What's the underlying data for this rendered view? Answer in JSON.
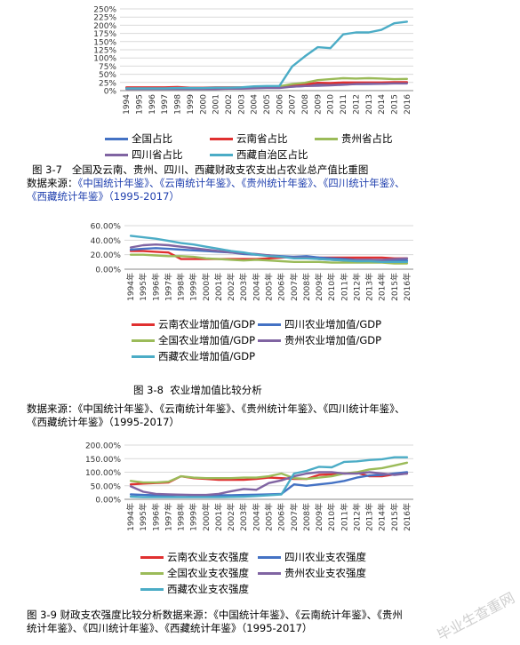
{
  "chart_data": [
    {
      "type": "line",
      "x": [
        "1994",
        "1995",
        "1996",
        "1997",
        "1998",
        "1999",
        "2000",
        "2001",
        "2002",
        "2003",
        "2004",
        "2005",
        "2006",
        "2007",
        "2008",
        "2009",
        "2010",
        "2011",
        "2012",
        "2013",
        "2014",
        "2015",
        "2016"
      ],
      "ylim": [
        0,
        250
      ],
      "yticks": [
        "0%",
        "25%",
        "50%",
        "75%",
        "100%",
        "125%",
        "150%",
        "175%",
        "200%",
        "225%",
        "250%"
      ],
      "grid": true,
      "legend_position": "bottom",
      "series": [
        {
          "name": "全国占比",
          "color": "#4472c4",
          "values": [
            8,
            8,
            8,
            9,
            9,
            9,
            9,
            9,
            9,
            9,
            10,
            11,
            11,
            12,
            14,
            18,
            18,
            19,
            20,
            20,
            21,
            23,
            25
          ]
        },
        {
          "name": "云南省占比",
          "color": "#e03030",
          "values": [
            10,
            10,
            10,
            10,
            11,
            9,
            9,
            10,
            10,
            10,
            11,
            10,
            10,
            17,
            19,
            24,
            23,
            25,
            25,
            25,
            25,
            26,
            26
          ]
        },
        {
          "name": "贵州省占比",
          "color": "#9bbb59",
          "values": [
            6,
            6,
            6,
            6,
            7,
            7,
            7,
            8,
            8,
            9,
            10,
            13,
            13,
            20,
            24,
            32,
            35,
            38,
            37,
            38,
            37,
            35,
            36
          ]
        },
        {
          "name": "四川省占比",
          "color": "#8064a2",
          "values": [
            5,
            5,
            5,
            5,
            5,
            5,
            5,
            5,
            6,
            6,
            7,
            8,
            8,
            12,
            14,
            15,
            16,
            18,
            20,
            21,
            21,
            22,
            22
          ]
        },
        {
          "name": "西藏自治区占比",
          "color": "#4bacc6",
          "values": [
            7,
            7,
            7,
            7,
            8,
            8,
            8,
            9,
            9,
            10,
            13,
            14,
            14,
            74,
            105,
            133,
            130,
            172,
            178,
            178,
            186,
            206,
            211
          ]
        }
      ]
    },
    {
      "type": "line",
      "x": [
        "1994年",
        "1995年",
        "1996年",
        "1997年",
        "1998年",
        "1999年",
        "2000年",
        "2001年",
        "2002年",
        "2003年",
        "2004年",
        "2005年",
        "2006年",
        "2007年",
        "2008年",
        "2009年",
        "2010年",
        "2011年",
        "2012年",
        "2013年",
        "2014年",
        "2015年",
        "2016年"
      ],
      "ylim": [
        0,
        60
      ],
      "yticks": [
        "0.00%",
        "20.00%",
        "40.00%",
        "60.00%"
      ],
      "grid": true,
      "legend_position": "bottom",
      "series": [
        {
          "name": "云南农业增加值/GDP",
          "color": "#e03030",
          "values": [
            25,
            25,
            24,
            23,
            14,
            14,
            14,
            14,
            14,
            14,
            14,
            15,
            16,
            17,
            17,
            16,
            16,
            16,
            16,
            16,
            16,
            15,
            15
          ]
        },
        {
          "name": "四川农业增加值/GDP",
          "color": "#4472c4",
          "values": [
            27,
            28,
            29,
            28,
            27,
            26,
            25,
            24,
            23,
            21,
            20,
            19,
            18,
            17,
            18,
            16,
            15,
            14,
            13,
            13,
            12,
            12,
            12
          ]
        },
        {
          "name": "全国农业增加值/GDP",
          "color": "#9bbb59",
          "values": [
            20,
            20,
            19,
            18,
            18,
            17,
            15,
            14,
            13,
            12,
            13,
            12,
            11,
            10,
            10,
            10,
            9,
            9,
            9,
            9,
            9,
            8,
            8
          ]
        },
        {
          "name": "贵州农业增加值/GDP",
          "color": "#8064a2",
          "values": [
            30,
            33,
            34,
            33,
            31,
            29,
            27,
            25,
            23,
            22,
            21,
            19,
            17,
            16,
            16,
            14,
            13,
            12,
            13,
            13,
            13,
            14,
            15
          ]
        },
        {
          "name": "西藏农业增加值/GDP",
          "color": "#4bacc6",
          "values": [
            46,
            44,
            42,
            39,
            36,
            34,
            31,
            28,
            25,
            23,
            20,
            18,
            17,
            15,
            15,
            14,
            13,
            12,
            11,
            11,
            10,
            10,
            10
          ]
        }
      ]
    },
    {
      "type": "line",
      "x": [
        "1994年",
        "1995年",
        "1996年",
        "1997年",
        "1998年",
        "1999年",
        "2000年",
        "2001年",
        "2002年",
        "2003年",
        "2004年",
        "2005年",
        "2006年",
        "2007年",
        "2008年",
        "2009年",
        "2010年",
        "2011年",
        "2012年",
        "2013年",
        "2014年",
        "2015年",
        "2016年"
      ],
      "ylim": [
        0,
        200
      ],
      "yticks": [
        "0.00%",
        "50.00%",
        "100.00%",
        "150.00%",
        "200.00%"
      ],
      "grid": true,
      "legend_position": "bottom",
      "series": [
        {
          "name": "云南农业支农强度",
          "color": "#e03030",
          "values": [
            55,
            58,
            60,
            62,
            85,
            78,
            75,
            72,
            72,
            72,
            75,
            80,
            78,
            75,
            75,
            90,
            92,
            95,
            98,
            85,
            85,
            92,
            95
          ]
        },
        {
          "name": "四川农业支农强度",
          "color": "#4472c4",
          "values": [
            18,
            16,
            15,
            15,
            16,
            15,
            15,
            15,
            15,
            16,
            17,
            18,
            20,
            55,
            50,
            55,
            60,
            68,
            80,
            88,
            90,
            95,
            100
          ]
        },
        {
          "name": "全国农业支农强度",
          "color": "#9bbb59",
          "values": [
            68,
            62,
            62,
            65,
            85,
            80,
            78,
            78,
            78,
            80,
            80,
            85,
            95,
            78,
            75,
            80,
            85,
            95,
            100,
            110,
            115,
            125,
            135
          ]
        },
        {
          "name": "贵州农业支农强度",
          "color": "#8064a2",
          "values": [
            48,
            28,
            20,
            18,
            17,
            16,
            16,
            20,
            30,
            38,
            35,
            60,
            70,
            85,
            95,
            100,
            100,
            95,
            95,
            100,
            95,
            90,
            95
          ]
        },
        {
          "name": "西藏农业支农强度",
          "color": "#4bacc6",
          "values": [
            10,
            8,
            8,
            8,
            8,
            8,
            8,
            8,
            9,
            10,
            12,
            15,
            18,
            95,
            105,
            120,
            118,
            138,
            140,
            145,
            148,
            155,
            155
          ]
        }
      ]
    }
  ],
  "captions": {
    "fig1": "图 3-7   全国及云南、贵州、四川、西藏财政支农支出占农业总产值比重图",
    "fig1_src_label": "数据来源：",
    "fig1_src_blue1": "《中国统计年鉴》、《云南统计年鉴》、《贵州统计年鉴》、《四川统计年鉴》、",
    "fig1_src_blue2": "《西藏统计年鉴》",
    "fig1_src_years": "（1995-2017）",
    "fig2": "图 3-8  农业增加值比较分析",
    "fig2_src1": "数据来源：《中国统计年鉴》、《云南统计年鉴》、《贵州统计年鉴》、《四川统计年鉴》、",
    "fig2_src2": "《西藏统计年鉴》（1995-2017）",
    "fig3_1": "图 3-9 财政支农强度比较分析数据来源：《中国统计年鉴》、《云南统计年鉴》、《贵州",
    "fig3_2": "统计年鉴》、《四川统计年鉴》、《西藏统计年鉴》（1995-2017）"
  },
  "watermark": "毕业生查重网"
}
